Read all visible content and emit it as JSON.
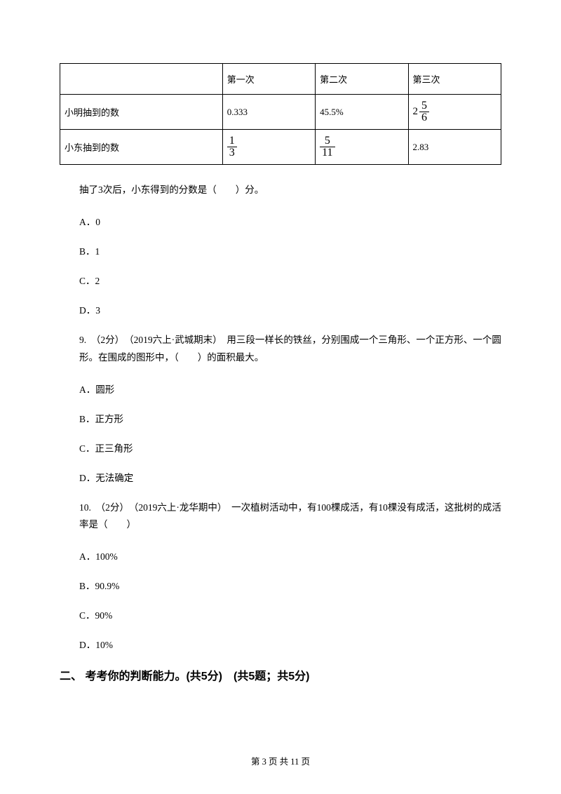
{
  "table": {
    "header": [
      "",
      "第一次",
      "第二次",
      "第三次"
    ],
    "rows": [
      {
        "label": "小明抽到的数",
        "c1_text": "0.333",
        "c2_text": "45.5%",
        "c3_mixed_whole": "2",
        "c3_mixed_num": "5",
        "c3_mixed_den": "6"
      },
      {
        "label": "小东抽到的数",
        "c1_num": "1",
        "c1_den": "3",
        "c2_num": "5",
        "c2_den": "11",
        "c3_text": "2.83"
      }
    ]
  },
  "q8_stem": "抽了3次后，小东得到的分数是（　　）分。",
  "q8_opts": {
    "A": "A．0",
    "B": "B．1",
    "C": "C．2",
    "D": "D．3"
  },
  "q9_stem": "9.　（2分）　（2019六上·武城期末）　用三段一样长的铁丝，分别围成一个三角形、一个正方形、一个圆形。在围成的图形中，（　　）的面积最大。",
  "q9_opts": {
    "A": "A．圆形",
    "B": "B．正方形",
    "C": "C．正三角形",
    "D": "D．无法确定"
  },
  "q10_stem": "10.　（2分）　（2019六上·龙华期中）　一次植树活动中，有100棵成活，有10棵没有成活，这批树的成活率是（　　）",
  "q10_opts": {
    "A": "A．100%",
    "B": "B．90.9%",
    "C": "C．90%",
    "D": "D．10%"
  },
  "section2": "二、 考考你的判断能力。(共5分)　(共5题；共5分)",
  "footer": "第 3 页 共 11 页"
}
